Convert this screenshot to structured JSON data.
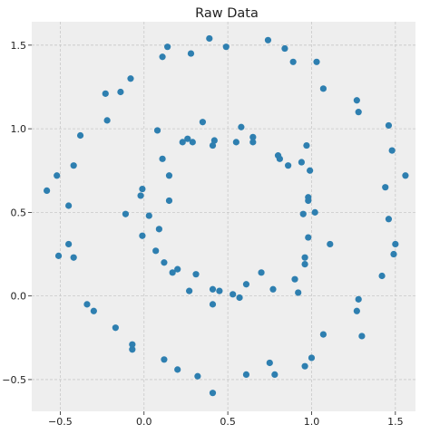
{
  "chart_data": {
    "type": "scatter",
    "title": "Raw Data",
    "xlabel": "",
    "ylabel": "",
    "xlim": [
      -0.67,
      1.62
    ],
    "ylim": [
      -0.69,
      1.64
    ],
    "xticks": [
      -0.5,
      0.0,
      0.5,
      1.0,
      1.5
    ],
    "xtick_labels": [
      "−0.5",
      "0.0",
      "0.5",
      "1.0",
      "1.5"
    ],
    "yticks": [
      -0.5,
      0.0,
      0.5,
      1.0,
      1.5
    ],
    "ytick_labels": [
      "−0.5",
      "0.0",
      "0.5",
      "1.0",
      "1.5"
    ],
    "grid": true,
    "legend": "none",
    "colors": {
      "point": "#2e7fb0",
      "background": "#eeeeee",
      "grid": "#c8c8c8"
    },
    "series": [
      {
        "points": [
          [
            -0.58,
            0.63
          ],
          [
            -0.52,
            0.72
          ],
          [
            -0.51,
            0.24
          ],
          [
            -0.45,
            0.54
          ],
          [
            -0.45,
            0.31
          ],
          [
            -0.42,
            0.78
          ],
          [
            -0.42,
            0.23
          ],
          [
            -0.38,
            0.96
          ],
          [
            -0.34,
            -0.05
          ],
          [
            -0.3,
            -0.09
          ],
          [
            -0.23,
            1.21
          ],
          [
            -0.22,
            1.05
          ],
          [
            -0.17,
            -0.19
          ],
          [
            -0.14,
            1.22
          ],
          [
            -0.11,
            0.49
          ],
          [
            -0.08,
            1.3
          ],
          [
            -0.07,
            -0.29
          ],
          [
            -0.07,
            -0.32
          ],
          [
            -0.02,
            0.6
          ],
          [
            -0.01,
            0.64
          ],
          [
            -0.01,
            0.36
          ],
          [
            0.03,
            0.48
          ],
          [
            0.07,
            0.27
          ],
          [
            0.08,
            0.99
          ],
          [
            0.09,
            0.4
          ],
          [
            0.11,
            1.43
          ],
          [
            0.11,
            0.82
          ],
          [
            0.12,
            0.2
          ],
          [
            0.12,
            -0.38
          ],
          [
            0.14,
            1.49
          ],
          [
            0.15,
            0.72
          ],
          [
            0.15,
            0.57
          ],
          [
            0.17,
            0.14
          ],
          [
            0.2,
            0.16
          ],
          [
            0.2,
            -0.44
          ],
          [
            0.23,
            0.92
          ],
          [
            0.26,
            0.94
          ],
          [
            0.27,
            0.03
          ],
          [
            0.28,
            1.45
          ],
          [
            0.29,
            0.92
          ],
          [
            0.31,
            0.13
          ],
          [
            0.32,
            -0.48
          ],
          [
            0.35,
            1.04
          ],
          [
            0.39,
            1.54
          ],
          [
            0.41,
            0.9
          ],
          [
            0.42,
            0.93
          ],
          [
            0.41,
            0.04
          ],
          [
            0.41,
            -0.05
          ],
          [
            0.41,
            -0.58
          ],
          [
            0.45,
            0.03
          ],
          [
            0.49,
            1.49
          ],
          [
            0.53,
            0.01
          ],
          [
            0.55,
            0.92
          ],
          [
            0.57,
            -0.01
          ],
          [
            0.58,
            1.01
          ],
          [
            0.61,
            0.07
          ],
          [
            0.61,
            -0.47
          ],
          [
            0.65,
            0.95
          ],
          [
            0.65,
            0.92
          ],
          [
            0.7,
            0.14
          ],
          [
            0.74,
            1.53
          ],
          [
            0.75,
            -0.4
          ],
          [
            0.77,
            0.04
          ],
          [
            0.78,
            -0.47
          ],
          [
            0.8,
            0.84
          ],
          [
            0.81,
            0.82
          ],
          [
            0.84,
            1.48
          ],
          [
            0.86,
            0.78
          ],
          [
            0.89,
            1.4
          ],
          [
            0.9,
            0.1
          ],
          [
            0.92,
            0.02
          ],
          [
            0.94,
            0.8
          ],
          [
            0.95,
            0.49
          ],
          [
            0.96,
            0.23
          ],
          [
            0.96,
            0.19
          ],
          [
            0.96,
            -0.42
          ],
          [
            0.97,
            0.9
          ],
          [
            0.98,
            0.59
          ],
          [
            0.98,
            0.57
          ],
          [
            0.98,
            0.35
          ],
          [
            0.99,
            0.75
          ],
          [
            1.0,
            -0.37
          ],
          [
            1.02,
            0.5
          ],
          [
            1.03,
            1.4
          ],
          [
            1.07,
            1.24
          ],
          [
            1.07,
            -0.23
          ],
          [
            1.11,
            0.31
          ],
          [
            1.27,
            1.17
          ],
          [
            1.27,
            -0.09
          ],
          [
            1.28,
            1.1
          ],
          [
            1.28,
            -0.02
          ],
          [
            1.3,
            -0.24
          ],
          [
            1.42,
            0.12
          ],
          [
            1.44,
            0.65
          ],
          [
            1.46,
            1.02
          ],
          [
            1.46,
            0.46
          ],
          [
            1.48,
            0.87
          ],
          [
            1.49,
            0.25
          ],
          [
            1.5,
            0.31
          ],
          [
            1.56,
            0.72
          ]
        ]
      }
    ]
  }
}
